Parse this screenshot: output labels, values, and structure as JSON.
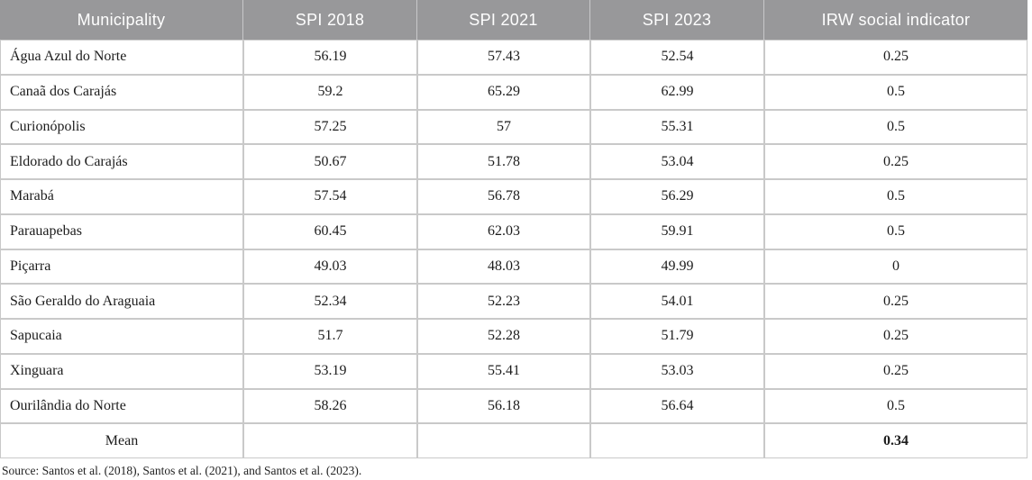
{
  "table": {
    "columns": [
      "Municipality",
      "SPI 2018",
      "SPI 2021",
      "SPI 2023",
      "IRW social indicator"
    ],
    "rows": [
      {
        "municipality": "Água Azul do Norte",
        "spi_2018": "56.19",
        "spi_2021": "57.43",
        "spi_2023": "52.54",
        "irw": "0.25"
      },
      {
        "municipality": "Canaã dos Carajás",
        "spi_2018": "59.2",
        "spi_2021": "65.29",
        "spi_2023": "62.99",
        "irw": "0.5"
      },
      {
        "municipality": "Curionópolis",
        "spi_2018": "57.25",
        "spi_2021": "57",
        "spi_2023": "55.31",
        "irw": "0.5"
      },
      {
        "municipality": "Eldorado do Carajás",
        "spi_2018": "50.67",
        "spi_2021": "51.78",
        "spi_2023": "53.04",
        "irw": "0.25"
      },
      {
        "municipality": "Marabá",
        "spi_2018": "57.54",
        "spi_2021": "56.78",
        "spi_2023": "56.29",
        "irw": "0.5"
      },
      {
        "municipality": "Parauapebas",
        "spi_2018": "60.45",
        "spi_2021": "62.03",
        "spi_2023": "59.91",
        "irw": "0.5"
      },
      {
        "municipality": "Piçarra",
        "spi_2018": "49.03",
        "spi_2021": "48.03",
        "spi_2023": "49.99",
        "irw": "0"
      },
      {
        "municipality": "São Geraldo do Araguaia",
        "spi_2018": "52.34",
        "spi_2021": "52.23",
        "spi_2023": "54.01",
        "irw": "0.25"
      },
      {
        "municipality": "Sapucaia",
        "spi_2018": "51.7",
        "spi_2021": "52.28",
        "spi_2023": "51.79",
        "irw": "0.25"
      },
      {
        "municipality": "Xinguara",
        "spi_2018": "53.19",
        "spi_2021": "55.41",
        "spi_2023": "53.03",
        "irw": "0.25"
      },
      {
        "municipality": "Ourilândia do Norte",
        "spi_2018": "58.26",
        "spi_2021": "56.18",
        "spi_2023": "56.64",
        "irw": "0.5"
      }
    ],
    "mean_row": {
      "label": "Mean",
      "spi_2018": "",
      "spi_2021": "",
      "spi_2023": "",
      "irw": "0.34"
    }
  },
  "footer": {
    "source_note": "Source: Santos et al. (2018), Santos et al. (2021), and Santos et al. (2023)."
  },
  "colors": {
    "header_bg": "#98989a",
    "header_text": "#ffffff",
    "cell_border": "#c9c9c9",
    "body_text": "#1c1c1c"
  }
}
